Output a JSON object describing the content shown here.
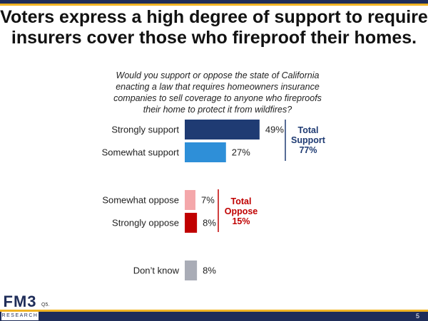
{
  "title": "Voters express a high degree of support to require insurers cover those who fireproof their homes.",
  "question": "Would you support or oppose the state of California enacting a law that requires homeowners insurance companies to sell coverage to anyone who fireproofs their home to protect it from wildfires?",
  "chart_data": {
    "type": "bar",
    "orientation": "horizontal",
    "categories": [
      "Strongly support",
      "Somewhat support",
      "Somewhat oppose",
      "Strongly oppose",
      "Don’t know"
    ],
    "values": [
      49,
      27,
      7,
      8,
      8
    ],
    "value_labels": [
      "49%",
      "27%",
      "7%",
      "8%",
      "8%"
    ],
    "colors": [
      "#1f3b73",
      "#2e8fd8",
      "#f4a7aa",
      "#c00000",
      "#a9acb6"
    ],
    "annotations": [
      {
        "text": "Total Support 77%",
        "lines": [
          "Total",
          "Support",
          "77%"
        ],
        "color": "#1f3b73"
      },
      {
        "text": "Total Oppose 15%",
        "lines": [
          "Total",
          "Oppose",
          "15%"
        ],
        "color": "#c00000"
      }
    ],
    "xlim": [
      0,
      100
    ]
  },
  "footer": {
    "question_number": "Q5.",
    "page_number": "5",
    "logo_main": "FM3",
    "logo_sub": "RESEARCH"
  },
  "colors": {
    "navy": "#1f2d59",
    "gold": "#f0b323"
  }
}
